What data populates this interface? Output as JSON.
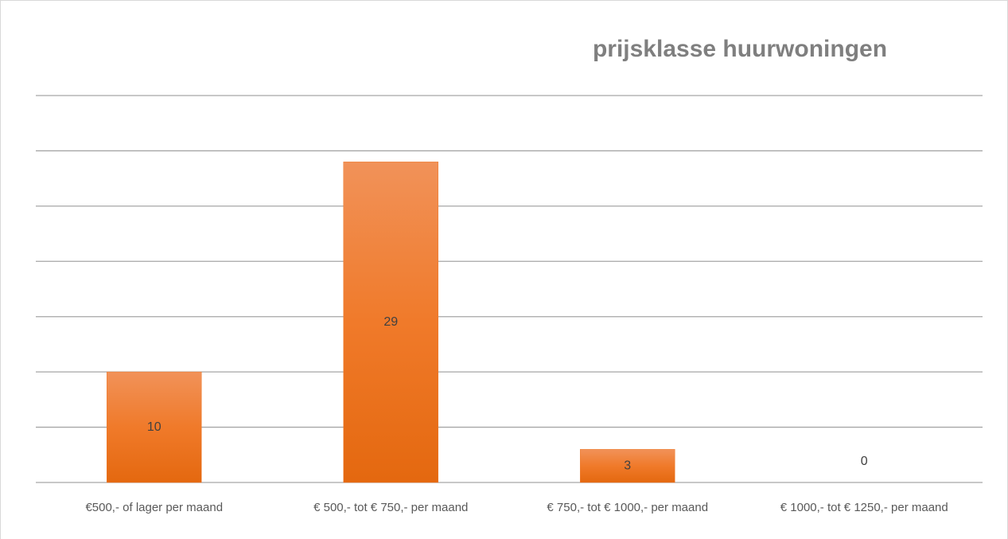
{
  "chart_data": {
    "type": "bar",
    "title": "prijsklasse huurwoningen",
    "categories": [
      "€500,- of lager per maand",
      "€ 500,- tot € 750,- per maand",
      "€ 750,- tot € 1000,- per maand",
      "€ 1000,- tot € 1250,- per maand"
    ],
    "values": [
      10,
      29,
      3,
      0
    ],
    "color": "#ed7d31",
    "ylim": [
      0,
      35
    ],
    "yticks": [
      0,
      5,
      10,
      15,
      20,
      25,
      30,
      35
    ],
    "grid": true
  }
}
